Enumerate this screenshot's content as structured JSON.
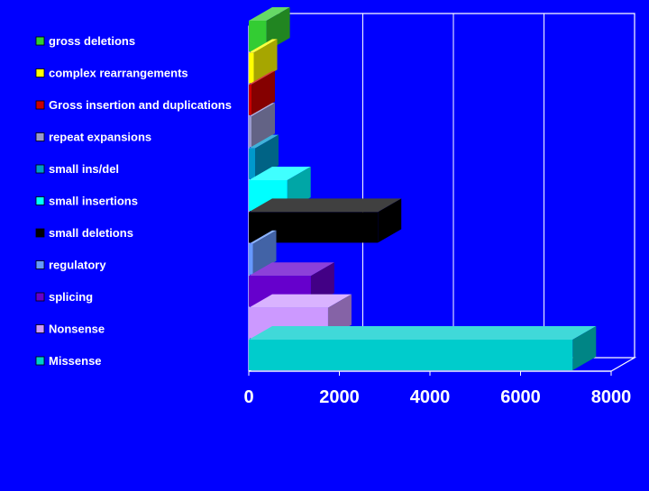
{
  "chart_data": {
    "type": "bar",
    "orientation": "horizontal",
    "style": "3d",
    "categories": [
      "Missense",
      "Nonsense",
      "splicing",
      "regulatory",
      "small deletions",
      "small insertions",
      "small ins/del",
      "repeat expansions",
      "Gross insertion and duplications",
      "complex rearrangements",
      "gross deletions"
    ],
    "values": [
      7150,
      1750,
      1370,
      90,
      2850,
      850,
      140,
      10,
      10,
      110,
      390
    ],
    "colors": [
      "#00CCCC",
      "#CC99FF",
      "#6600CC",
      "#6699FF",
      "#000000",
      "#00FFFF",
      "#0099CC",
      "#9999CC",
      "#CC0000",
      "#FFFF00",
      "#33CC33"
    ],
    "xlim": [
      0,
      8000
    ],
    "xticks": [
      "0",
      "2000",
      "4000",
      "6000",
      "8000"
    ],
    "legend_position": "left",
    "grid": true,
    "text_color": "#FFFFFF",
    "background": "#0000FF"
  }
}
